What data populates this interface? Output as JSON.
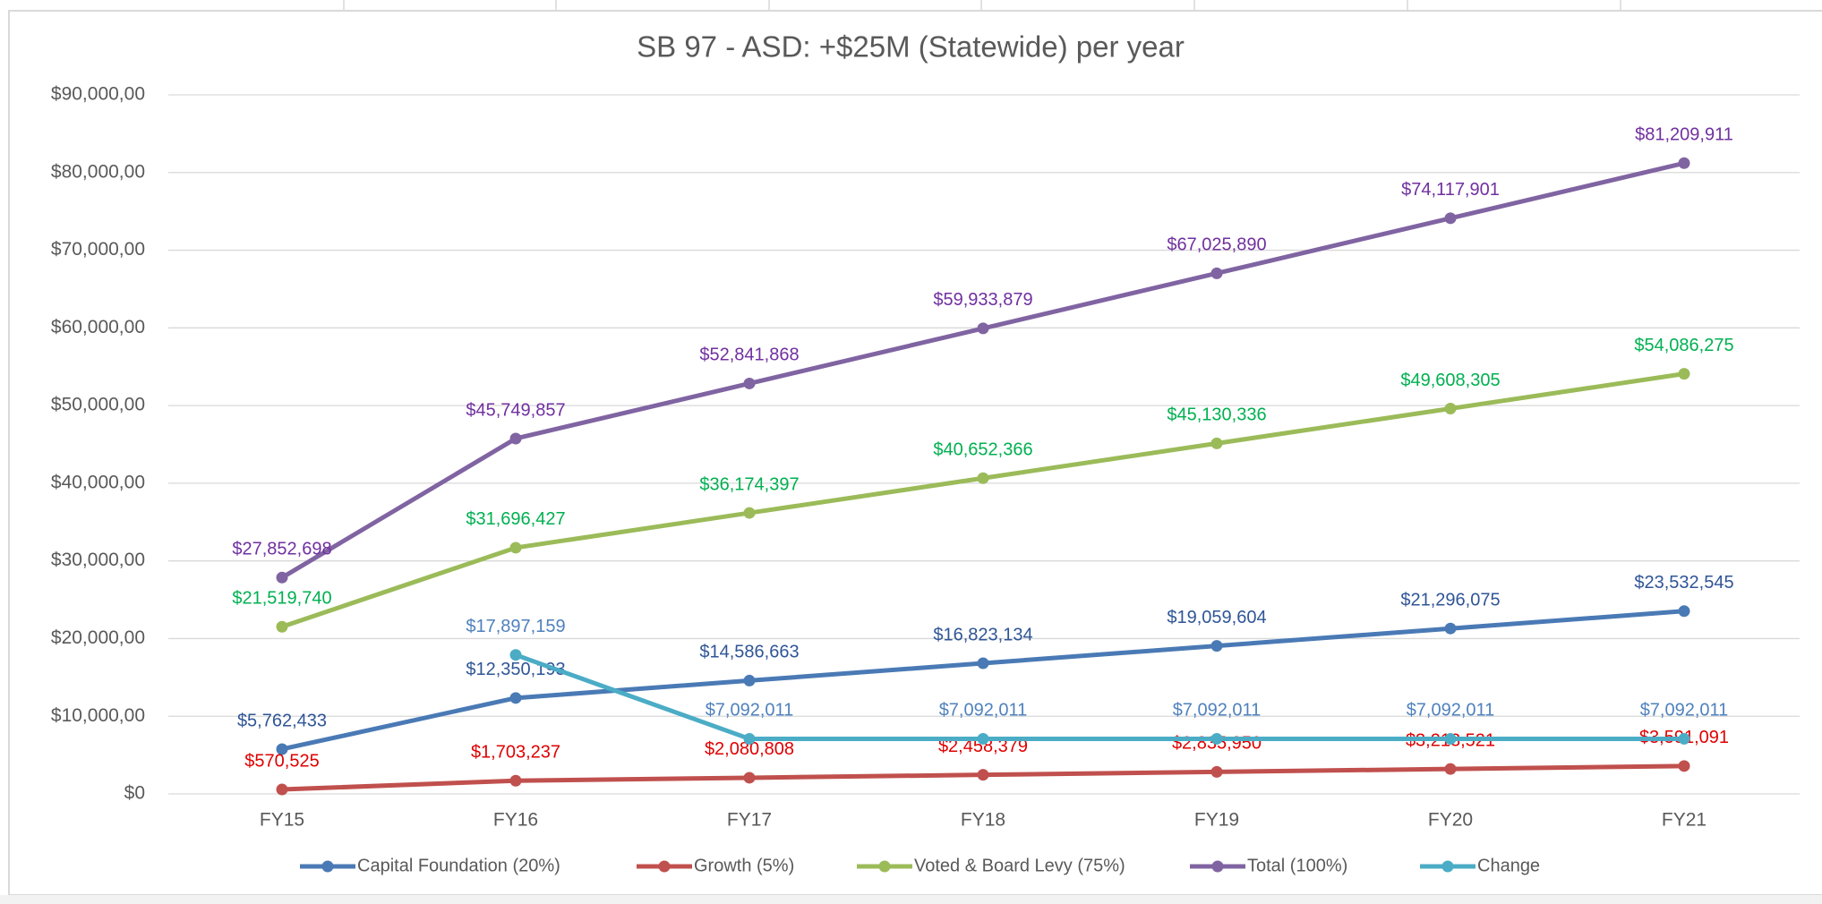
{
  "chart_data": {
    "type": "line",
    "title": "SB 97 - ASD: +$25M (Statewide) per year",
    "categories": [
      "FY15",
      "FY16",
      "FY17",
      "FY18",
      "FY19",
      "FY20",
      "FY21"
    ],
    "ylim": [
      0,
      90000000
    ],
    "yticks": [
      {
        "value": 0,
        "label": "$0"
      },
      {
        "value": 10000000,
        "label": "$10,000,00"
      },
      {
        "value": 20000000,
        "label": "$20,000,00"
      },
      {
        "value": 30000000,
        "label": "$30,000,00"
      },
      {
        "value": 40000000,
        "label": "$40,000,00"
      },
      {
        "value": 50000000,
        "label": "$50,000,00"
      },
      {
        "value": 60000000,
        "label": "$60,000,00"
      },
      {
        "value": 70000000,
        "label": "$70,000,00"
      },
      {
        "value": 80000000,
        "label": "$80,000,00"
      },
      {
        "value": 90000000,
        "label": "$90,000,00"
      }
    ],
    "grid": true,
    "legend": "bottom",
    "series": [
      {
        "name": "Capital Foundation (20%)",
        "color": "#4a7ab5",
        "label_color": "#2f5597",
        "values": [
          5762433,
          12350193,
          14586663,
          16823134,
          19059604,
          21296075,
          23532545
        ],
        "value_labels": [
          "$5,762,433",
          "$12,350,193",
          "$14,586,663",
          "$16,823,134",
          "$19,059,604",
          "$21,296,075",
          "$23,532,545"
        ]
      },
      {
        "name": "Growth (5%)",
        "color": "#c0504d",
        "label_color": "#e00000",
        "values": [
          570525,
          1703237,
          2080808,
          2458379,
          2835950,
          3213521,
          3591091
        ],
        "value_labels": [
          "$570,525",
          "$1,703,237",
          "$2,080,808",
          "$2,458,379",
          "$2,835,950",
          "$3,213,521",
          "$3,591,091"
        ]
      },
      {
        "name": "Voted & Board Levy (75%)",
        "color": "#9bbb59",
        "label_color": "#00b050",
        "values": [
          21519740,
          31696427,
          36174397,
          40652366,
          45130336,
          49608305,
          54086275
        ],
        "value_labels": [
          "$21,519,740",
          "$31,696,427",
          "$36,174,397",
          "$40,652,366",
          "$45,130,336",
          "$49,608,305",
          "$54,086,275"
        ]
      },
      {
        "name": "Total (100%)",
        "color": "#8064a2",
        "label_color": "#7030a0",
        "values": [
          27852698,
          45749857,
          52841868,
          59933879,
          67025890,
          74117901,
          81209911
        ],
        "value_labels": [
          "$27,852,698",
          "$45,749,857",
          "$52,841,868",
          "$59,933,879",
          "$67,025,890",
          "$74,117,901",
          "$81,209,911"
        ]
      },
      {
        "name": "Change",
        "color": "#4bacc6",
        "label_color": "#4f81bd",
        "values": [
          null,
          17897159,
          7092011,
          7092011,
          7092011,
          7092011,
          7092011
        ],
        "value_labels": [
          null,
          "$17,897,159",
          "$7,092,011",
          "$7,092,011",
          "$7,092,011",
          "$7,092,011",
          "$7,092,011"
        ]
      }
    ]
  }
}
